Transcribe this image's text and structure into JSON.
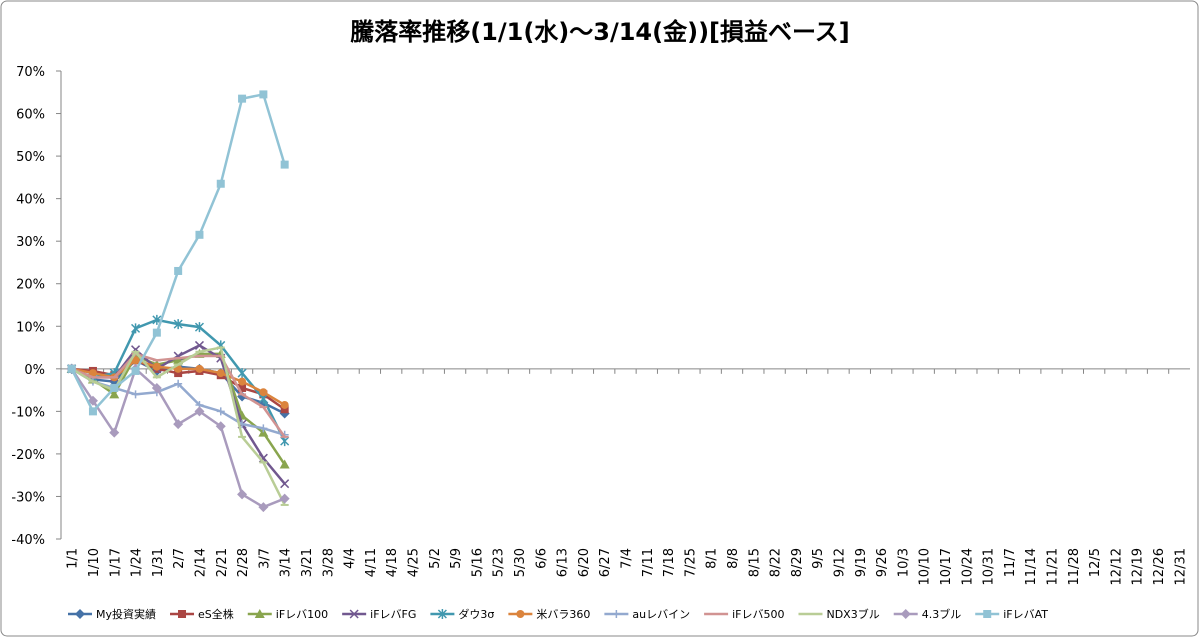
{
  "chart_data": {
    "type": "line",
    "title": "騰落率推移(1/1(水)～3/14(金))[損益ベース]",
    "categories": [
      "1/1",
      "1/10",
      "1/17",
      "1/24",
      "1/31",
      "2/7",
      "2/14",
      "2/21",
      "2/28",
      "3/7",
      "3/14",
      "3/21",
      "3/28",
      "4/4",
      "4/11",
      "4/18",
      "4/25",
      "5/2",
      "5/9",
      "5/16",
      "5/23",
      "5/30",
      "6/6",
      "6/13",
      "6/20",
      "6/27",
      "7/4",
      "7/11",
      "7/18",
      "7/25",
      "8/1",
      "8/8",
      "8/15",
      "8/22",
      "8/29",
      "9/5",
      "9/12",
      "9/19",
      "9/26",
      "10/3",
      "10/10",
      "10/17",
      "10/24",
      "10/31",
      "11/7",
      "11/14",
      "11/21",
      "11/28",
      "12/5",
      "12/12",
      "12/19",
      "12/26",
      "12/31"
    ],
    "ylim": [
      -40,
      70
    ],
    "yticks": [
      {
        "value": -40,
        "label": "-40%"
      },
      {
        "value": -30,
        "label": "-30%"
      },
      {
        "value": -20,
        "label": "-20%"
      },
      {
        "value": -10,
        "label": "-10%"
      },
      {
        "value": 0,
        "label": "0%"
      },
      {
        "value": 10,
        "label": "10%"
      },
      {
        "value": 20,
        "label": "20%"
      },
      {
        "value": 30,
        "label": "30%"
      },
      {
        "value": 40,
        "label": "40%"
      },
      {
        "value": 50,
        "label": "50%"
      },
      {
        "value": 60,
        "label": "60%"
      },
      {
        "value": 70,
        "label": "70%"
      }
    ],
    "grid": false,
    "legend": "bottom",
    "series": [
      {
        "name": "My投資実績",
        "color": "#4572A7",
        "marker": "diamond",
        "values": [
          0,
          -2.5,
          -3,
          2,
          -0.5,
          0.5,
          0,
          -1,
          -6.5,
          -8,
          -10.5,
          null,
          null,
          null,
          null,
          null,
          null,
          null,
          null,
          null,
          null,
          null,
          null,
          null,
          null,
          null,
          null,
          null,
          null,
          null,
          null,
          null,
          null,
          null,
          null,
          null,
          null,
          null,
          null,
          null,
          null,
          null,
          null,
          null,
          null,
          null,
          null,
          null,
          null,
          null,
          null,
          null,
          null
        ]
      },
      {
        "name": "eS全株",
        "color": "#AA4643",
        "marker": "square",
        "values": [
          0,
          -0.5,
          -1.5,
          2,
          0,
          -1,
          -0.5,
          -1.5,
          -4.5,
          -6,
          -9.5,
          null,
          null,
          null,
          null,
          null,
          null,
          null,
          null,
          null,
          null,
          null,
          null,
          null,
          null,
          null,
          null,
          null,
          null,
          null,
          null,
          null,
          null,
          null,
          null,
          null,
          null,
          null,
          null,
          null,
          null,
          null,
          null,
          null,
          null,
          null,
          null,
          null,
          null,
          null,
          null,
          null,
          null
        ]
      },
      {
        "name": "iFレバ100",
        "color": "#89A54E",
        "marker": "triangle",
        "values": [
          0,
          -2.5,
          -6,
          3,
          1,
          2,
          3.5,
          3.5,
          -11,
          -15,
          -22.5,
          null,
          null,
          null,
          null,
          null,
          null,
          null,
          null,
          null,
          null,
          null,
          null,
          null,
          null,
          null,
          null,
          null,
          null,
          null,
          null,
          null,
          null,
          null,
          null,
          null,
          null,
          null,
          null,
          null,
          null,
          null,
          null,
          null,
          null,
          null,
          null,
          null,
          null,
          null,
          null,
          null,
          null
        ]
      },
      {
        "name": "iFレバFG",
        "color": "#71588F",
        "marker": "x",
        "values": [
          0,
          -2,
          -2,
          4.5,
          0,
          3,
          5.5,
          2.5,
          -13,
          -21,
          -27,
          null,
          null,
          null,
          null,
          null,
          null,
          null,
          null,
          null,
          null,
          null,
          null,
          null,
          null,
          null,
          null,
          null,
          null,
          null,
          null,
          null,
          null,
          null,
          null,
          null,
          null,
          null,
          null,
          null,
          null,
          null,
          null,
          null,
          null,
          null,
          null,
          null,
          null,
          null,
          null,
          null,
          null
        ]
      },
      {
        "name": "ダウ3σ",
        "color": "#4198AF",
        "marker": "star",
        "values": [
          0,
          -2,
          -1,
          9.5,
          11.5,
          10.5,
          9.8,
          5.5,
          -1,
          -7,
          -17,
          null,
          null,
          null,
          null,
          null,
          null,
          null,
          null,
          null,
          null,
          null,
          null,
          null,
          null,
          null,
          null,
          null,
          null,
          null,
          null,
          null,
          null,
          null,
          null,
          null,
          null,
          null,
          null,
          null,
          null,
          null,
          null,
          null,
          null,
          null,
          null,
          null,
          null,
          null,
          null,
          null,
          null
        ]
      },
      {
        "name": "米バラ360",
        "color": "#DB843D",
        "marker": "circle",
        "values": [
          0,
          -1,
          -2,
          2,
          0.5,
          0,
          0,
          -1,
          -3,
          -5.5,
          -8.5,
          null,
          null,
          null,
          null,
          null,
          null,
          null,
          null,
          null,
          null,
          null,
          null,
          null,
          null,
          null,
          null,
          null,
          null,
          null,
          null,
          null,
          null,
          null,
          null,
          null,
          null,
          null,
          null,
          null,
          null,
          null,
          null,
          null,
          null,
          null,
          null,
          null,
          null,
          null,
          null,
          null,
          null
        ]
      },
      {
        "name": "auレバイン",
        "color": "#93A9CF",
        "marker": "plus",
        "values": [
          0,
          -3,
          -4.5,
          -6,
          -5.5,
          -3.5,
          -8.5,
          -10,
          -13,
          -14,
          -15.5,
          null,
          null,
          null,
          null,
          null,
          null,
          null,
          null,
          null,
          null,
          null,
          null,
          null,
          null,
          null,
          null,
          null,
          null,
          null,
          null,
          null,
          null,
          null,
          null,
          null,
          null,
          null,
          null,
          null,
          null,
          null,
          null,
          null,
          null,
          null,
          null,
          null,
          null,
          null,
          null,
          null,
          null
        ]
      },
      {
        "name": "iFレバ500",
        "color": "#D19392",
        "marker": "dash",
        "values": [
          0,
          -2,
          -2,
          3.5,
          2,
          2.5,
          3,
          3,
          -6,
          -9,
          -16,
          null,
          null,
          null,
          null,
          null,
          null,
          null,
          null,
          null,
          null,
          null,
          null,
          null,
          null,
          null,
          null,
          null,
          null,
          null,
          null,
          null,
          null,
          null,
          null,
          null,
          null,
          null,
          null,
          null,
          null,
          null,
          null,
          null,
          null,
          null,
          null,
          null,
          null,
          null,
          null,
          null,
          null
        ]
      },
      {
        "name": "NDX3ブル",
        "color": "#B9CD96",
        "marker": "dash",
        "values": [
          0,
          -3,
          -5,
          4,
          -2,
          1,
          4,
          5,
          -16,
          -22,
          -32,
          null,
          null,
          null,
          null,
          null,
          null,
          null,
          null,
          null,
          null,
          null,
          null,
          null,
          null,
          null,
          null,
          null,
          null,
          null,
          null,
          null,
          null,
          null,
          null,
          null,
          null,
          null,
          null,
          null,
          null,
          null,
          null,
          null,
          null,
          null,
          null,
          null,
          null,
          null,
          null,
          null,
          null
        ]
      },
      {
        "name": "4.3ブル",
        "color": "#A99BBD",
        "marker": "diamond",
        "values": [
          0,
          -7.5,
          -15,
          0,
          -4.5,
          -13,
          -10,
          -13.5,
          -29.5,
          -32.5,
          -30.5,
          null,
          null,
          null,
          null,
          null,
          null,
          null,
          null,
          null,
          null,
          null,
          null,
          null,
          null,
          null,
          null,
          null,
          null,
          null,
          null,
          null,
          null,
          null,
          null,
          null,
          null,
          null,
          null,
          null,
          null,
          null,
          null,
          null,
          null,
          null,
          null,
          null,
          null,
          null,
          null,
          null,
          null
        ]
      },
      {
        "name": "iFレバAT",
        "color": "#91C3D5",
        "marker": "square",
        "values": [
          0,
          -10,
          -4.5,
          -0.5,
          8.5,
          23,
          31.5,
          43.5,
          63.5,
          64.5,
          48,
          null,
          null,
          null,
          null,
          null,
          null,
          null,
          null,
          null,
          null,
          null,
          null,
          null,
          null,
          null,
          null,
          null,
          null,
          null,
          null,
          null,
          null,
          null,
          null,
          null,
          null,
          null,
          null,
          null,
          null,
          null,
          null,
          null,
          null,
          null,
          null,
          null,
          null,
          null,
          null,
          null,
          null
        ]
      }
    ]
  }
}
